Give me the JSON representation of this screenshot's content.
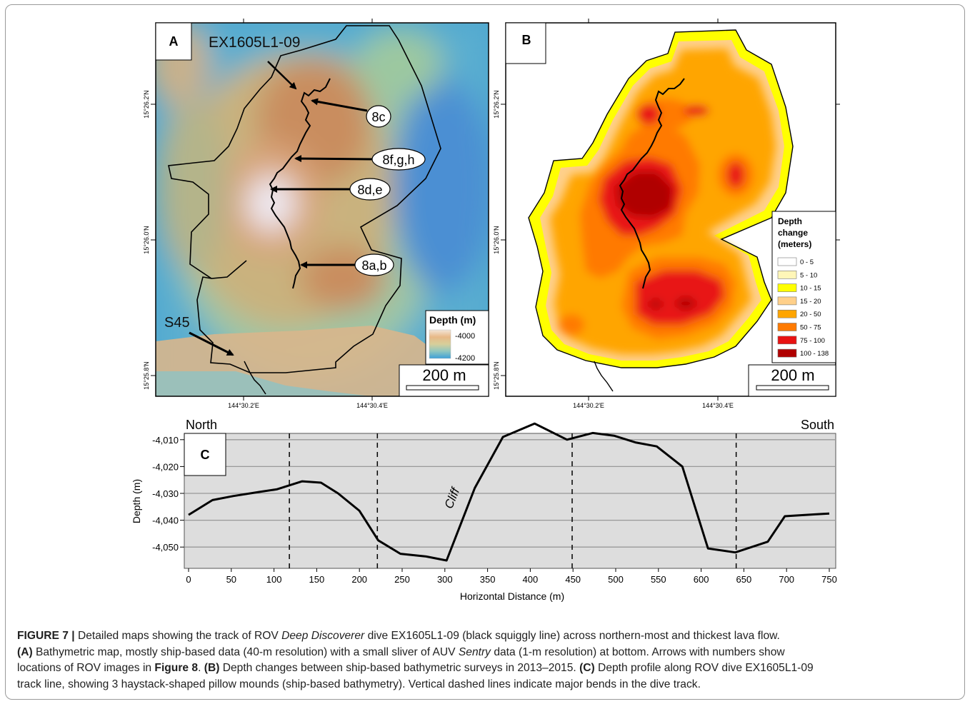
{
  "panel_a": {
    "letter": "A",
    "dive_label": "EX1605L1-09",
    "callouts": [
      "8c",
      "8f,g,h",
      "8d,e",
      "8a,b"
    ],
    "s45_label": "S45",
    "legend_title": "Depth (m)",
    "legend_top": "-4000",
    "legend_bottom": "-4200",
    "scale_bar": "200 m",
    "lat_ticks": [
      "15°26.2'N",
      "15°26.0'N",
      "15°25.8'N"
    ],
    "lon_ticks": [
      "144°30.2'E",
      "144°30.4'E"
    ]
  },
  "panel_b": {
    "letter": "B",
    "legend_title_lines": [
      "Depth",
      "change",
      "(meters)"
    ],
    "legend_items": [
      {
        "label": "0 - 5",
        "color": "#ffffff"
      },
      {
        "label": "5 - 10",
        "color": "#fff6b8"
      },
      {
        "label": "10 - 15",
        "color": "#ffff00"
      },
      {
        "label": "15 - 20",
        "color": "#ffd08a"
      },
      {
        "label": "20 - 50",
        "color": "#ffa500"
      },
      {
        "label": "50 - 75",
        "color": "#ff7a00"
      },
      {
        "label": "75 - 100",
        "color": "#e81212"
      },
      {
        "label": "100 - 138",
        "color": "#b00000"
      }
    ],
    "scale_bar": "200 m",
    "lat_ticks": [
      "15°26.2'N",
      "15°26.0'N",
      "15°25.8'N"
    ],
    "lon_ticks": [
      "144°30.2'E",
      "144°30.4'E"
    ]
  },
  "panel_c": {
    "letter": "C",
    "north_label": "North",
    "south_label": "South",
    "cliff_label": "Cliff"
  },
  "chart_data": {
    "type": "line",
    "xlabel": "Horizontal Distance (m)",
    "ylabel": "Depth (m)",
    "xlim": [
      0,
      750
    ],
    "ylim": [
      -4055,
      -4005
    ],
    "x_ticks": [
      0,
      50,
      100,
      150,
      200,
      250,
      300,
      350,
      400,
      450,
      500,
      550,
      600,
      650,
      700,
      750
    ],
    "y_ticks": [
      -4010,
      -4020,
      -4030,
      -4040,
      -4050
    ],
    "y_tick_labels": [
      "-4,010",
      "-4,020",
      "-4,030",
      "-4,040",
      "-4,050"
    ],
    "grid": "horizontal",
    "x": [
      0,
      28,
      52,
      82,
      103,
      133,
      155,
      175,
      200,
      222,
      248,
      278,
      302,
      335,
      368,
      405,
      443,
      473,
      498,
      523,
      548,
      578,
      608,
      640,
      678,
      698,
      735,
      750
    ],
    "y": [
      -4038,
      -4032.5,
      -4031,
      -4029.5,
      -4028.5,
      -4025.5,
      -4026,
      -4030,
      -4036.5,
      -4047.5,
      -4052.5,
      -4053.5,
      -4055,
      -4028,
      -4009,
      -4004,
      -4010,
      -4007.5,
      -4008.5,
      -4011,
      -4012.5,
      -4020,
      -4050.5,
      -4052,
      -4048,
      -4038.5,
      -4037.8,
      -4037.5
    ],
    "dashed_verticals": [
      118,
      221,
      449,
      641
    ]
  },
  "caption": {
    "figure_label": "FIGURE 7 |",
    "line1_a": " Detailed maps showing the track of ROV ",
    "line1_ital": "Deep Discoverer",
    "line1_b": " dive EX1605L1-09 (black squiggly line) across northern-most and thickest lava flow.",
    "line2_bold": "(A)",
    "line2_a": " Bathymetric map, mostly ship-based data (40-m resolution) with a small sliver of AUV ",
    "line2_ital": "Sentry",
    "line2_b": " data (1-m resolution) at bottom. Arrows with numbers show",
    "line3_a": "locations of ROV images in ",
    "line3_bold": "Figure 8",
    "line3_b": ". ",
    "line3_bold2": "(B)",
    "line3_c": " Depth changes between ship-based bathymetric surveys in 2013–2015. ",
    "line3_bold3": "(C)",
    "line3_d": " Depth profile along ROV dive EX1605L1-09",
    "line4": "track line, showing 3 haystack-shaped pillow mounds (ship-based bathymetry). Vertical dashed lines indicate major bends in the dive track."
  }
}
